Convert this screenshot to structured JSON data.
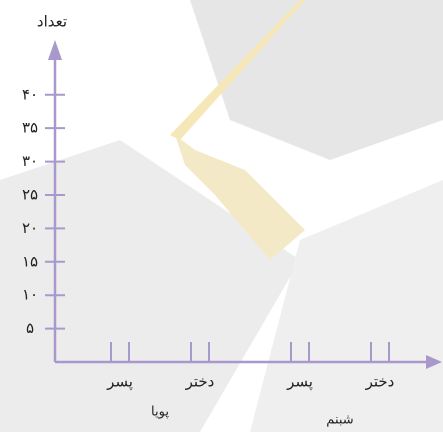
{
  "chart_data": {
    "type": "bar",
    "y_label": "تعداد",
    "ylim": [
      0,
      47
    ],
    "yticks": [
      {
        "value": 5,
        "label": "۵"
      },
      {
        "value": 10,
        "label": "۱۰"
      },
      {
        "value": 15,
        "label": "۱۵"
      },
      {
        "value": 20,
        "label": "۲۰"
      },
      {
        "value": 25,
        "label": "۲۵"
      },
      {
        "value": 30,
        "label": "۳۰"
      },
      {
        "value": 35,
        "label": "۳۵"
      },
      {
        "value": 40,
        "label": "۴۰"
      }
    ],
    "groups": [
      {
        "name": "پویا",
        "categories": [
          "پسر",
          "دختر"
        ]
      },
      {
        "name": "شبنم",
        "categories": [
          "پسر",
          "دختر"
        ]
      }
    ],
    "axis_color": "#a898cc",
    "group_label_color": "#c4508c"
  }
}
